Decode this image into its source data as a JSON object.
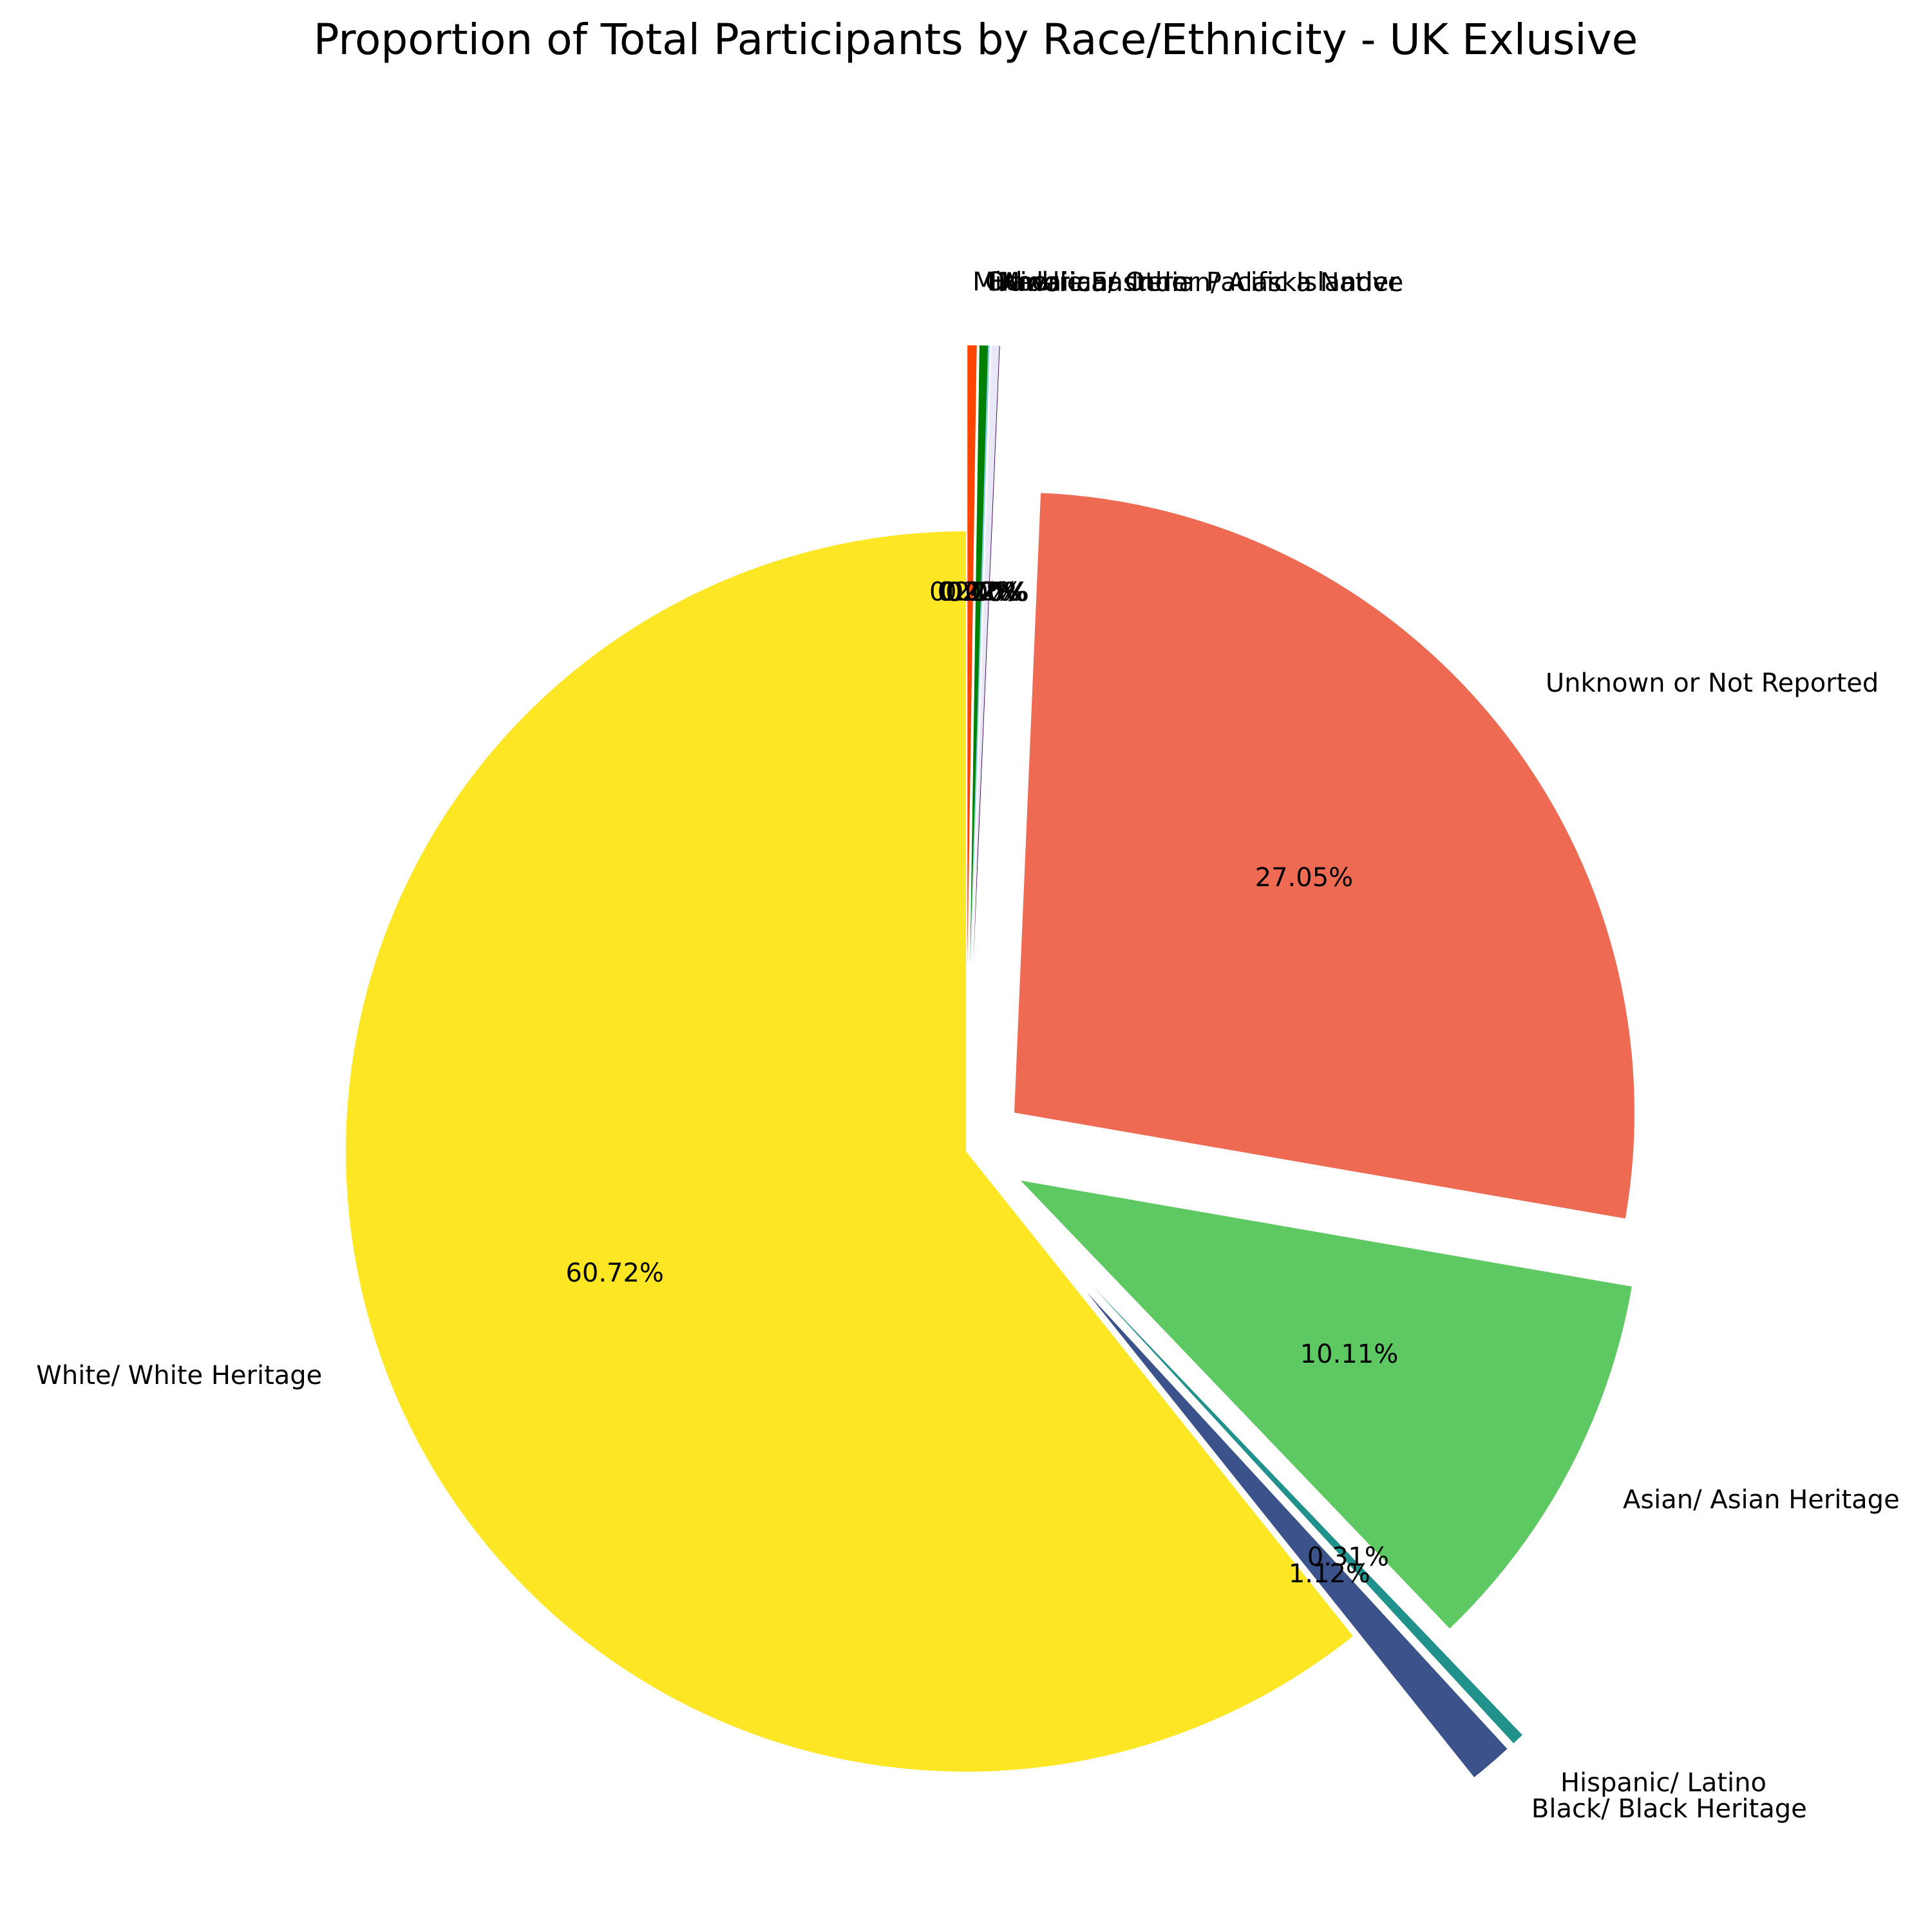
{
  "chart_data": {
    "type": "pie",
    "title": "Proportion of Total Participants by Race/Ethnicity - UK Exlusive",
    "start_angle_deg": 90,
    "direction": "counterclockwise",
    "slices": [
      {
        "label": "White/ White Heritage",
        "value": 60.72,
        "display": "60.72%",
        "color": "#fde725",
        "exploded": false
      },
      {
        "label": "Black/ Black Heritage",
        "value": 1.12,
        "display": "1.12%",
        "color": "#3b528b",
        "exploded": true
      },
      {
        "label": "Hispanic/ Latino",
        "value": 0.31,
        "display": "0.31%",
        "color": "#21918c",
        "exploded": true
      },
      {
        "label": "Asian/ Asian Heritage",
        "value": 10.11,
        "display": "10.11%",
        "color": "#5ec962",
        "exploded": true
      },
      {
        "label": "Unknown or Not Reported",
        "value": 27.05,
        "display": "27.05%",
        "color": "#ee6a52",
        "exploded": true
      },
      {
        "label": "American Indian/ Alaska Native",
        "value": 0.0,
        "display": "0.00%",
        "color": "#440154",
        "exploded": true
      },
      {
        "label": "Middle Eastern",
        "value": 0.2,
        "display": "0.20%",
        "color": "#e8e8f8",
        "exploded": true
      },
      {
        "label": "Hawaiian/ Other Pacific Islander",
        "value": 0.02,
        "display": "0.02%",
        "color": "#87ceeb",
        "exploded": true
      },
      {
        "label": "Other",
        "value": 0.22,
        "display": "0.22%",
        "color": "#008000",
        "exploded": true
      },
      {
        "label": "Mixed",
        "value": 0.24,
        "display": "0.24%",
        "color": "#ff4500",
        "exploded": true
      }
    ]
  }
}
